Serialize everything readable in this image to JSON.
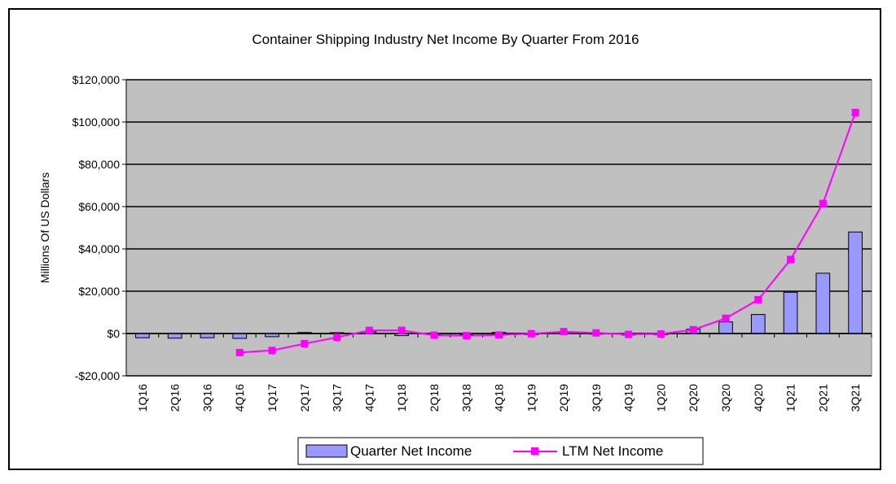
{
  "chart_data": {
    "type": "bar+line",
    "title": "Container Shipping Industry Net Income By Quarter From 2016",
    "xlabel": "",
    "ylabel": "Millions Of US Dollars",
    "ylim": [
      -20000,
      120000
    ],
    "yticks": [
      -20000,
      0,
      20000,
      40000,
      60000,
      80000,
      100000,
      120000
    ],
    "ytick_labels": [
      "-$20,000",
      "$0",
      "$20,000",
      "$40,000",
      "$60,000",
      "$80,000",
      "$100,000",
      "$120,000"
    ],
    "grid": true,
    "legend_position": "bottom-center",
    "categories": [
      "1Q16",
      "2Q16",
      "3Q16",
      "4Q16",
      "1Q17",
      "2Q17",
      "3Q17",
      "4Q17",
      "1Q18",
      "2Q18",
      "3Q18",
      "4Q18",
      "1Q19",
      "2Q19",
      "3Q19",
      "4Q19",
      "1Q20",
      "2Q20",
      "3Q20",
      "4Q20",
      "1Q21",
      "2Q21",
      "3Q21"
    ],
    "series": [
      {
        "name": "Quarter Net Income",
        "kind": "bar",
        "color": "#9999ff",
        "values": [
          -2000,
          -2200,
          -2000,
          -2300,
          -1500,
          500,
          400,
          800,
          -1000,
          -600,
          -300,
          500,
          -400,
          600,
          300,
          -700,
          -600,
          2000,
          5500,
          9000,
          19500,
          28500,
          48000
        ]
      },
      {
        "name": "LTM Net Income",
        "kind": "line",
        "color": "#ff00ff",
        "values": [
          null,
          null,
          null,
          -9000,
          -8000,
          -4800,
          -1800,
          1500,
          1500,
          -800,
          -1000,
          -700,
          -100,
          900,
          300,
          -400,
          -200,
          1800,
          7200,
          16000,
          35000,
          61500,
          104500
        ]
      }
    ]
  },
  "colors": {
    "plot_bg": "#c0c0c0",
    "bar_fill": "#9999ff",
    "line": "#ff00ff"
  }
}
